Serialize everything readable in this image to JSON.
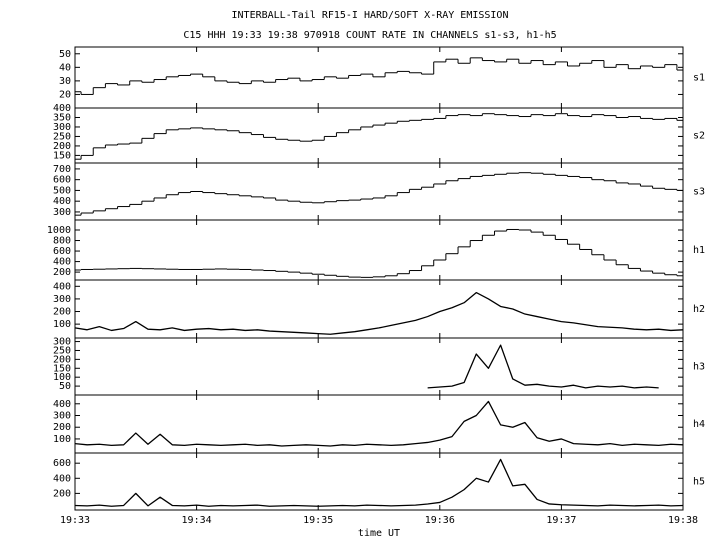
{
  "title": "INTERBALL-Tail RF15-I HARD/SOFT X-RAY EMISSION",
  "subtitle": "C15 HHH 19:33 19:38 970918  COUNT RATE IN CHANNELS s1-s3, h1-h5",
  "xlabel": "time UT",
  "xlim": [
    1173,
    1178
  ],
  "xticks": [
    {
      "value": 1173,
      "label": "19:33"
    },
    {
      "value": 1174,
      "label": "19:34"
    },
    {
      "value": 1175,
      "label": "19:35"
    },
    {
      "value": 1176,
      "label": "19:36"
    },
    {
      "value": 1177,
      "label": "19:37"
    },
    {
      "value": 1178,
      "label": "19:38"
    }
  ],
  "chart_data": [
    {
      "type": "line",
      "step": true,
      "ylim": [
        10,
        55
      ],
      "yticks": [
        20,
        30,
        40,
        50
      ],
      "x": [
        1173,
        1173.1,
        1173.2,
        1173.3,
        1173.4,
        1173.5,
        1173.6,
        1173.7,
        1173.8,
        1173.9,
        1174,
        1174.1,
        1174.2,
        1174.3,
        1174.4,
        1174.5,
        1174.6,
        1174.7,
        1174.8,
        1174.9,
        1175,
        1175.1,
        1175.2,
        1175.3,
        1175.4,
        1175.5,
        1175.6,
        1175.7,
        1175.8,
        1175.9,
        1176,
        1176.1,
        1176.2,
        1176.3,
        1176.4,
        1176.5,
        1176.6,
        1176.7,
        1176.8,
        1176.9,
        1177,
        1177.1,
        1177.2,
        1177.3,
        1177.4,
        1177.5,
        1177.6,
        1177.7,
        1177.8,
        1177.9,
        1178
      ],
      "series": [
        {
          "name": "s1",
          "color": "#000000",
          "values": [
            22,
            20,
            25,
            28,
            27,
            30,
            29,
            31,
            33,
            34,
            35,
            33,
            30,
            29,
            28,
            30,
            29,
            31,
            32,
            30,
            31,
            33,
            32,
            34,
            35,
            33,
            36,
            37,
            36,
            35,
            44,
            46,
            43,
            47,
            45,
            44,
            46,
            43,
            45,
            42,
            44,
            41,
            43,
            45,
            40,
            42,
            39,
            41,
            40,
            42,
            38
          ]
        }
      ]
    },
    {
      "type": "line",
      "step": true,
      "ylim": [
        110,
        400
      ],
      "yticks": [
        150,
        200,
        250,
        300,
        350,
        400
      ],
      "x": [
        1173,
        1173.1,
        1173.2,
        1173.3,
        1173.4,
        1173.5,
        1173.6,
        1173.7,
        1173.8,
        1173.9,
        1174,
        1174.1,
        1174.2,
        1174.3,
        1174.4,
        1174.5,
        1174.6,
        1174.7,
        1174.8,
        1174.9,
        1175,
        1175.1,
        1175.2,
        1175.3,
        1175.4,
        1175.5,
        1175.6,
        1175.7,
        1175.8,
        1175.9,
        1176,
        1176.1,
        1176.2,
        1176.3,
        1176.4,
        1176.5,
        1176.6,
        1176.7,
        1176.8,
        1176.9,
        1177,
        1177.1,
        1177.2,
        1177.3,
        1177.4,
        1177.5,
        1177.6,
        1177.7,
        1177.8,
        1177.9,
        1178
      ],
      "series": [
        {
          "name": "s2",
          "color": "#000000",
          "values": [
            130,
            150,
            190,
            205,
            210,
            215,
            240,
            265,
            285,
            290,
            295,
            290,
            285,
            280,
            270,
            260,
            245,
            235,
            230,
            225,
            230,
            250,
            270,
            285,
            300,
            310,
            320,
            330,
            335,
            340,
            345,
            360,
            365,
            360,
            370,
            365,
            360,
            355,
            365,
            360,
            370,
            360,
            355,
            365,
            360,
            350,
            355,
            345,
            340,
            345,
            335
          ]
        }
      ]
    },
    {
      "type": "line",
      "step": true,
      "ylim": [
        225,
        755
      ],
      "yticks": [
        300,
        400,
        500,
        600,
        700
      ],
      "x": [
        1173,
        1173.1,
        1173.2,
        1173.3,
        1173.4,
        1173.5,
        1173.6,
        1173.7,
        1173.8,
        1173.9,
        1174,
        1174.1,
        1174.2,
        1174.3,
        1174.4,
        1174.5,
        1174.6,
        1174.7,
        1174.8,
        1174.9,
        1175,
        1175.1,
        1175.2,
        1175.3,
        1175.4,
        1175.5,
        1175.6,
        1175.7,
        1175.8,
        1175.9,
        1176,
        1176.1,
        1176.2,
        1176.3,
        1176.4,
        1176.5,
        1176.6,
        1176.7,
        1176.8,
        1176.9,
        1177,
        1177.1,
        1177.2,
        1177.3,
        1177.4,
        1177.5,
        1177.6,
        1177.7,
        1177.8,
        1177.9,
        1178
      ],
      "series": [
        {
          "name": "s3",
          "color": "#000000",
          "values": [
            270,
            290,
            310,
            330,
            350,
            370,
            400,
            430,
            460,
            480,
            490,
            480,
            470,
            460,
            450,
            440,
            430,
            410,
            400,
            390,
            385,
            395,
            405,
            410,
            420,
            430,
            450,
            480,
            510,
            530,
            560,
            590,
            610,
            630,
            640,
            650,
            660,
            665,
            660,
            650,
            640,
            630,
            620,
            600,
            590,
            570,
            560,
            540,
            520,
            510,
            500
          ]
        }
      ]
    },
    {
      "type": "line",
      "step": true,
      "ylim": [
        50,
        1190
      ],
      "yticks": [
        200,
        400,
        600,
        800,
        1000
      ],
      "x": [
        1173,
        1173.1,
        1173.2,
        1173.3,
        1173.4,
        1173.5,
        1173.6,
        1173.7,
        1173.8,
        1173.9,
        1174,
        1174.1,
        1174.2,
        1174.3,
        1174.4,
        1174.5,
        1174.6,
        1174.7,
        1174.8,
        1174.9,
        1175,
        1175.1,
        1175.2,
        1175.3,
        1175.4,
        1175.5,
        1175.6,
        1175.7,
        1175.8,
        1175.9,
        1176,
        1176.1,
        1176.2,
        1176.3,
        1176.4,
        1176.5,
        1176.6,
        1176.7,
        1176.8,
        1176.9,
        1177,
        1177.1,
        1177.2,
        1177.3,
        1177.4,
        1177.5,
        1177.6,
        1177.7,
        1177.8,
        1177.9,
        1178
      ],
      "series": [
        {
          "name": "h1",
          "color": "#000000",
          "values": [
            240,
            250,
            255,
            260,
            265,
            270,
            265,
            260,
            255,
            250,
            250,
            255,
            260,
            255,
            250,
            240,
            230,
            215,
            200,
            180,
            160,
            140,
            120,
            105,
            100,
            110,
            130,
            170,
            230,
            320,
            430,
            550,
            680,
            800,
            900,
            980,
            1010,
            1000,
            960,
            900,
            820,
            730,
            630,
            530,
            430,
            340,
            270,
            220,
            180,
            150,
            130
          ]
        }
      ]
    },
    {
      "type": "line",
      "step": false,
      "ylim": [
        -10,
        450
      ],
      "yticks": [
        100,
        200,
        300,
        400
      ],
      "x": [
        1173,
        1173.1,
        1173.2,
        1173.3,
        1173.4,
        1173.5,
        1173.6,
        1173.7,
        1173.8,
        1173.9,
        1174,
        1174.1,
        1174.2,
        1174.3,
        1174.4,
        1174.5,
        1174.6,
        1174.7,
        1174.8,
        1174.9,
        1175,
        1175.1,
        1175.2,
        1175.3,
        1175.4,
        1175.5,
        1175.6,
        1175.7,
        1175.8,
        1175.9,
        1176,
        1176.1,
        1176.2,
        1176.3,
        1176.4,
        1176.5,
        1176.6,
        1176.7,
        1176.8,
        1176.9,
        1177,
        1177.1,
        1177.2,
        1177.3,
        1177.4,
        1177.5,
        1177.6,
        1177.7,
        1177.8,
        1177.9,
        1178
      ],
      "series": [
        {
          "name": "h2",
          "color": "#000000",
          "values": [
            70,
            55,
            80,
            50,
            65,
            120,
            60,
            55,
            70,
            50,
            60,
            65,
            55,
            60,
            50,
            55,
            45,
            40,
            35,
            30,
            25,
            20,
            30,
            40,
            55,
            70,
            90,
            110,
            130,
            160,
            200,
            230,
            270,
            350,
            300,
            240,
            220,
            180,
            160,
            140,
            120,
            110,
            95,
            80,
            75,
            70,
            60,
            55,
            60,
            50,
            55
          ]
        }
      ]
    },
    {
      "type": "line",
      "step": false,
      "ylim": [
        0,
        320
      ],
      "yticks": [
        50,
        100,
        150,
        200,
        250,
        300
      ],
      "x": [
        1173,
        1173.1,
        1173.2,
        1173.3,
        1173.4,
        1173.5,
        1173.6,
        1173.7,
        1173.8,
        1173.9,
        1174,
        1174.1,
        1174.2,
        1174.3,
        1174.4,
        1174.5,
        1174.6,
        1174.7,
        1174.8,
        1174.9,
        1175,
        1175.1,
        1175.2,
        1175.3,
        1175.4,
        1175.5,
        1175.6,
        1175.7,
        1175.8,
        1175.9,
        1176,
        1176.1,
        1176.2,
        1176.3,
        1176.4,
        1176.5,
        1176.6,
        1176.7,
        1176.8,
        1176.9,
        1177,
        1177.1,
        1177.2,
        1177.3,
        1177.4,
        1177.5,
        1177.6,
        1177.7,
        1177.8,
        1177.9,
        1178
      ],
      "series": [
        {
          "name": "h3",
          "color": "#000000",
          "values": [
            null,
            null,
            null,
            null,
            null,
            null,
            null,
            null,
            null,
            null,
            null,
            null,
            null,
            null,
            null,
            null,
            null,
            null,
            null,
            null,
            null,
            null,
            null,
            null,
            null,
            null,
            null,
            null,
            null,
            40,
            45,
            50,
            70,
            230,
            150,
            280,
            90,
            55,
            60,
            50,
            45,
            55,
            40,
            50,
            45,
            50,
            40,
            45,
            40,
            null,
            null
          ]
        }
      ]
    },
    {
      "type": "line",
      "step": false,
      "ylim": [
        -20,
        475
      ],
      "yticks": [
        100,
        200,
        300,
        400
      ],
      "x": [
        1173,
        1173.1,
        1173.2,
        1173.3,
        1173.4,
        1173.5,
        1173.6,
        1173.7,
        1173.8,
        1173.9,
        1174,
        1174.1,
        1174.2,
        1174.3,
        1174.4,
        1174.5,
        1174.6,
        1174.7,
        1174.8,
        1174.9,
        1175,
        1175.1,
        1175.2,
        1175.3,
        1175.4,
        1175.5,
        1175.6,
        1175.7,
        1175.8,
        1175.9,
        1176,
        1176.1,
        1176.2,
        1176.3,
        1176.4,
        1176.5,
        1176.6,
        1176.7,
        1176.8,
        1176.9,
        1177,
        1177.1,
        1177.2,
        1177.3,
        1177.4,
        1177.5,
        1177.6,
        1177.7,
        1177.8,
        1177.9,
        1178
      ],
      "series": [
        {
          "name": "h4",
          "color": "#000000",
          "values": [
            60,
            50,
            55,
            45,
            50,
            150,
            55,
            140,
            50,
            45,
            55,
            50,
            45,
            50,
            55,
            45,
            50,
            40,
            45,
            50,
            45,
            40,
            50,
            45,
            55,
            50,
            45,
            50,
            60,
            70,
            90,
            120,
            250,
            300,
            420,
            220,
            200,
            240,
            110,
            80,
            100,
            60,
            55,
            50,
            60,
            45,
            55,
            50,
            45,
            55,
            50
          ]
        }
      ]
    },
    {
      "type": "line",
      "step": false,
      "ylim": [
        -20,
        735
      ],
      "yticks": [
        200,
        400,
        600
      ],
      "x": [
        1173,
        1173.1,
        1173.2,
        1173.3,
        1173.4,
        1173.5,
        1173.6,
        1173.7,
        1173.8,
        1173.9,
        1174,
        1174.1,
        1174.2,
        1174.3,
        1174.4,
        1174.5,
        1174.6,
        1174.7,
        1174.8,
        1174.9,
        1175,
        1175.1,
        1175.2,
        1175.3,
        1175.4,
        1175.5,
        1175.6,
        1175.7,
        1175.8,
        1175.9,
        1176,
        1176.1,
        1176.2,
        1176.3,
        1176.4,
        1176.5,
        1176.6,
        1176.7,
        1176.8,
        1176.9,
        1177,
        1177.1,
        1177.2,
        1177.3,
        1177.4,
        1177.5,
        1177.6,
        1177.7,
        1177.8,
        1177.9,
        1178
      ],
      "series": [
        {
          "name": "h5",
          "color": "#000000",
          "values": [
            40,
            35,
            45,
            30,
            40,
            200,
            35,
            150,
            40,
            35,
            45,
            30,
            40,
            35,
            40,
            45,
            30,
            35,
            40,
            35,
            30,
            35,
            40,
            35,
            45,
            40,
            35,
            40,
            45,
            60,
            80,
            150,
            250,
            400,
            350,
            650,
            300,
            320,
            120,
            60,
            50,
            45,
            40,
            35,
            45,
            40,
            35,
            40,
            45,
            35,
            40
          ]
        }
      ]
    }
  ]
}
